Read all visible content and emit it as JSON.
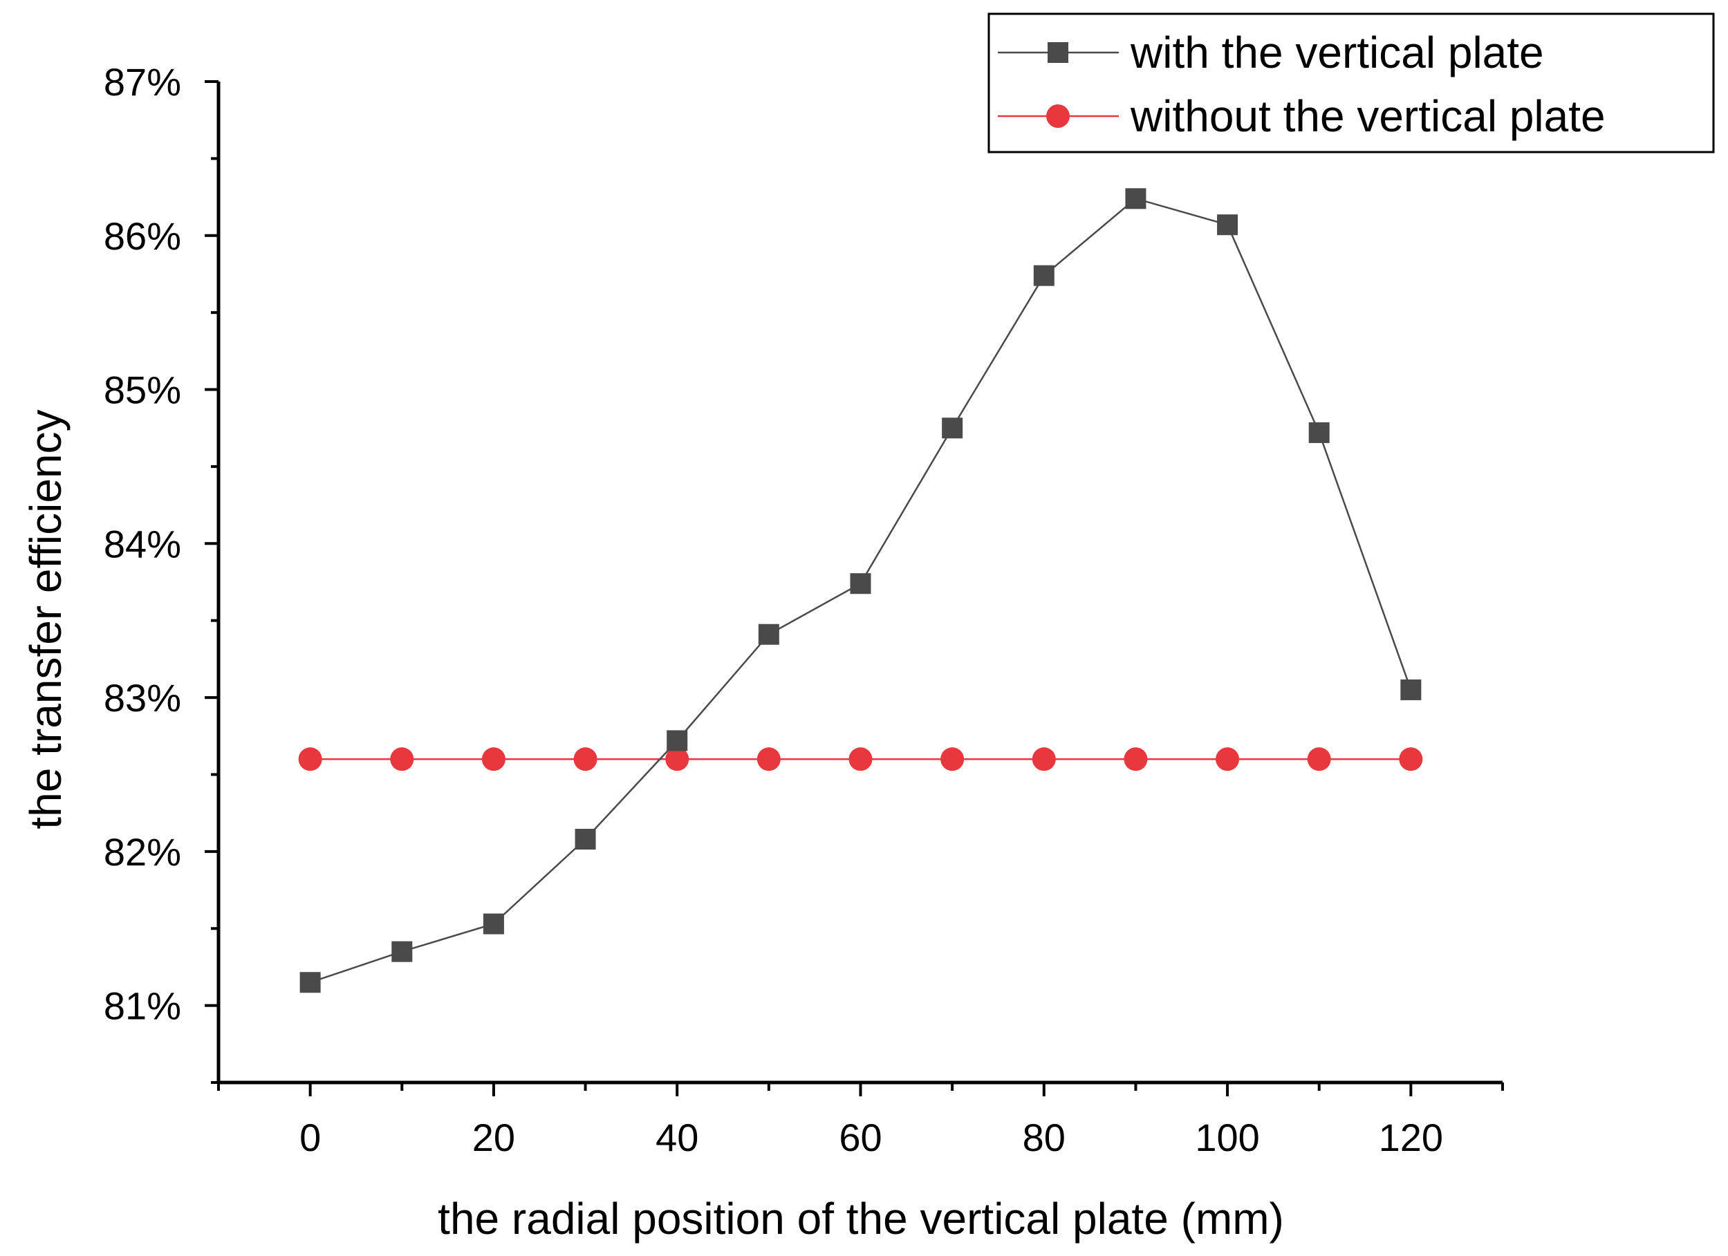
{
  "chart_data": {
    "type": "line",
    "title": "",
    "xlabel": "the radial position of the vertical plate (mm)",
    "ylabel": "the transfer efficiency",
    "x": [
      0,
      10,
      20,
      30,
      40,
      50,
      60,
      70,
      80,
      90,
      100,
      110,
      120
    ],
    "xlim": [
      -10,
      130
    ],
    "ylim": [
      80.5,
      87
    ],
    "x_ticks": [
      0,
      20,
      40,
      60,
      80,
      100,
      120
    ],
    "x_tick_labels": [
      "0",
      "20",
      "40",
      "60",
      "80",
      "100",
      "120"
    ],
    "y_ticks": [
      81,
      82,
      83,
      84,
      85,
      86,
      87
    ],
    "y_tick_labels": [
      "81%",
      "82%",
      "83%",
      "84%",
      "85%",
      "86%",
      "87%"
    ],
    "grid": false,
    "legend_position": "top-right",
    "series": [
      {
        "name": "with the vertical plate",
        "marker": "square",
        "color": "#4a4a4a",
        "values": [
          81.15,
          81.35,
          81.53,
          82.08,
          82.72,
          83.41,
          83.74,
          84.75,
          85.74,
          86.24,
          86.07,
          84.72,
          83.05
        ]
      },
      {
        "name": "without the vertical plate",
        "marker": "circle",
        "color": "#e8383d",
        "values": [
          82.6,
          82.6,
          82.6,
          82.6,
          82.6,
          82.6,
          82.6,
          82.6,
          82.6,
          82.6,
          82.6,
          82.6,
          82.6
        ]
      }
    ]
  }
}
